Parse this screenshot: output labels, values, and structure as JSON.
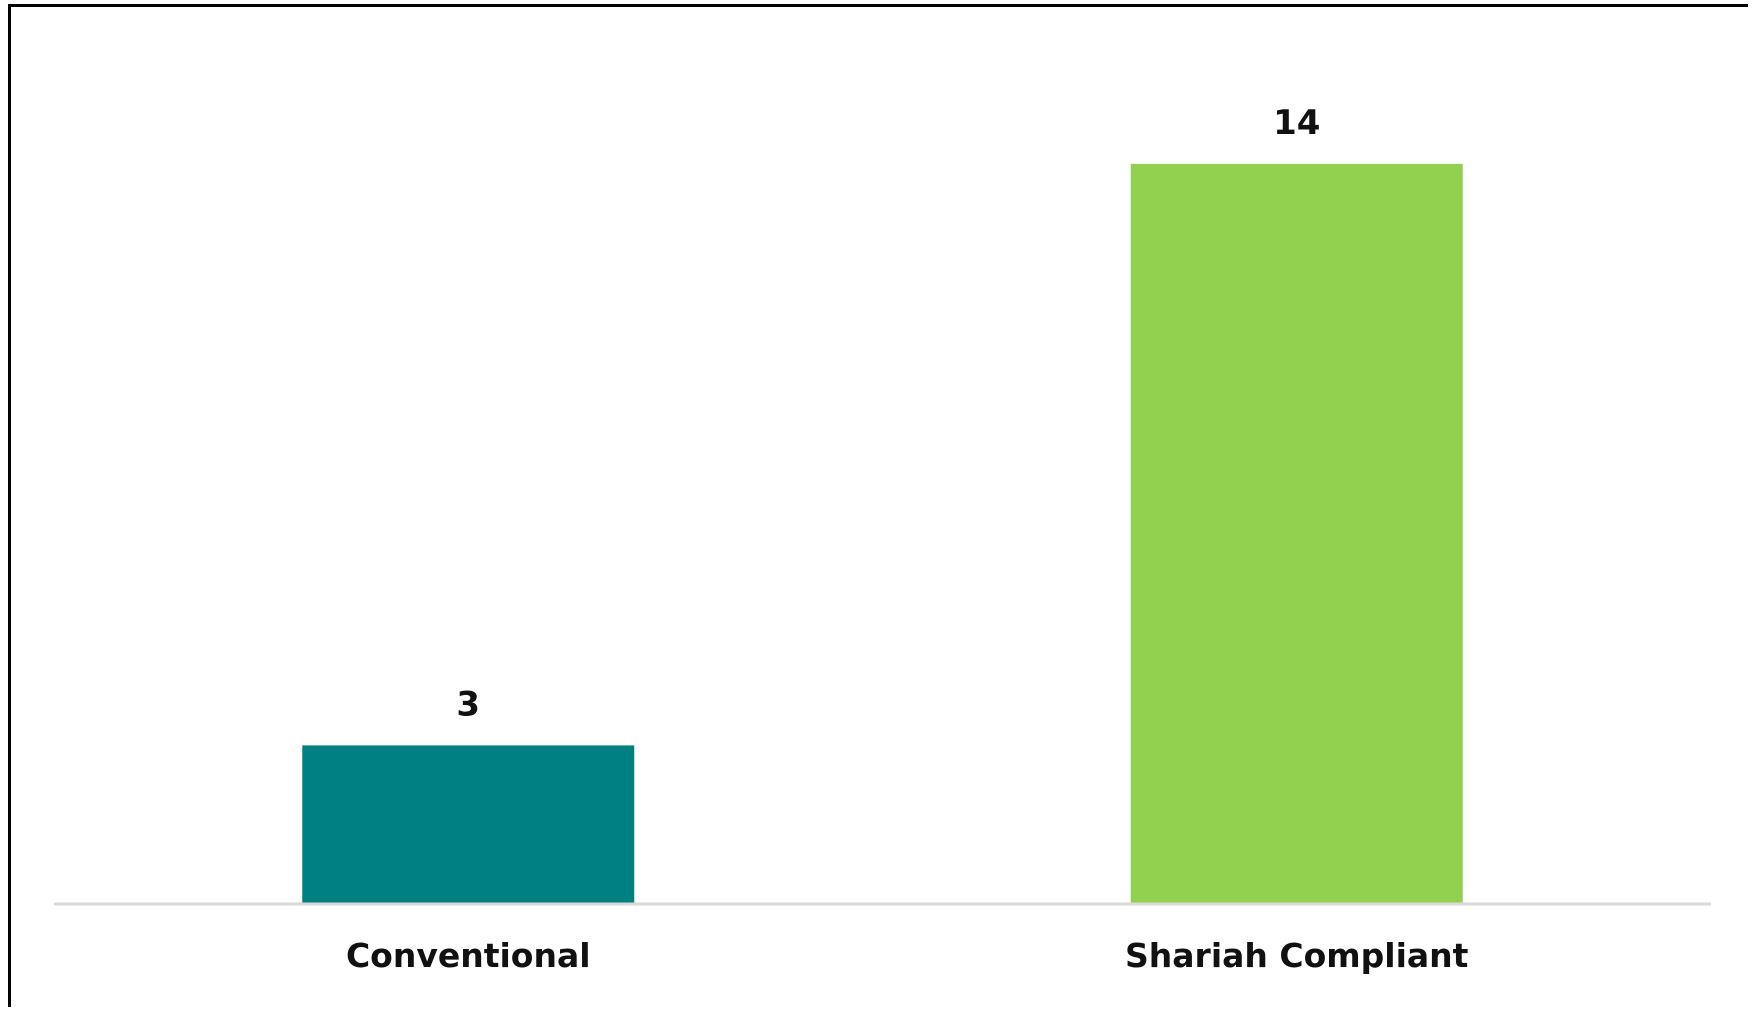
{
  "chart_data": {
    "type": "bar",
    "categories": [
      "Conventional",
      "Shariah Compliant"
    ],
    "values": [
      3,
      14
    ],
    "colors": [
      "#008080",
      "#92d050"
    ],
    "data_labels": [
      "3",
      "14"
    ],
    "title": "",
    "xlabel": "",
    "ylabel": "",
    "ylim": [
      0,
      15
    ],
    "grid": false,
    "legend": "none",
    "axis_color": "#d9d9d9"
  }
}
